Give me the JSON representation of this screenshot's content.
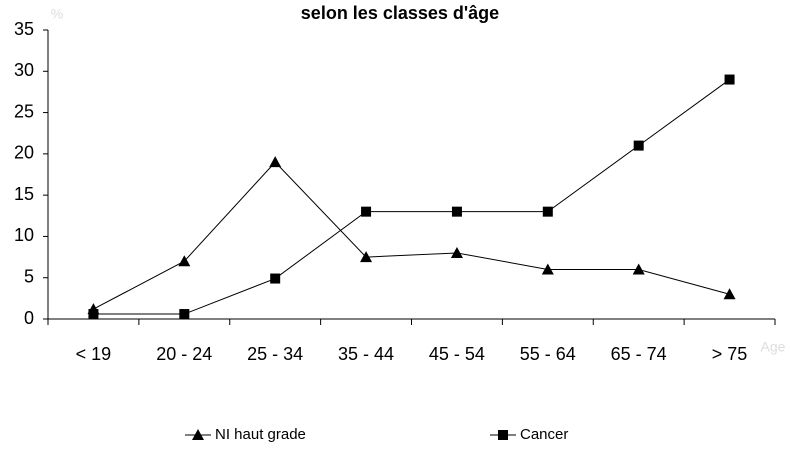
{
  "chart_data": {
    "type": "line",
    "title": "selon les classes d'âge",
    "y_label": "%",
    "x_label": "Age",
    "categories": [
      "< 19",
      "20 - 24",
      "25 - 34",
      "35 - 44",
      "45 - 54",
      "55 - 64",
      "65 - 74",
      "> 75"
    ],
    "series": [
      {
        "name": "NI haut grade",
        "color": "#000000",
        "marker": "triangle",
        "values": [
          1.2,
          7,
          19,
          7.5,
          8,
          6,
          6,
          3
        ]
      },
      {
        "name": "Cancer",
        "color": "#000000",
        "marker": "square",
        "values": [
          0.6,
          0.6,
          4.9,
          13,
          13,
          13,
          21,
          29
        ]
      }
    ],
    "ylim": [
      0,
      35
    ],
    "yticks": [
      0,
      5,
      10,
      15,
      20,
      25,
      30,
      35
    ],
    "grid": false
  }
}
